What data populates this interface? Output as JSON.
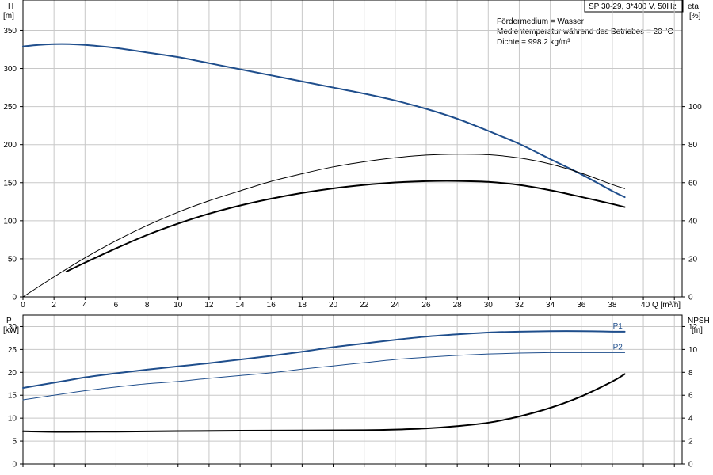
{
  "header": {
    "model": "SP 30-29, 3*400 V, 50Hz",
    "info_lines": [
      "Fördermedium = Wasser",
      "Medientemperatur während des Betriebes = 20 °C",
      "Dichte = 998.2 kg/m³"
    ]
  },
  "chart_data": [
    {
      "type": "line",
      "xlabel": "Q [m³/h]",
      "x_ticks": [
        0,
        2,
        4,
        6,
        8,
        10,
        12,
        14,
        16,
        18,
        20,
        22,
        24,
        26,
        28,
        30,
        32,
        34,
        36,
        38,
        40
      ],
      "x_tick_label_overrides": {
        "40": "40 Q [m³/h]"
      },
      "xlim": [
        0,
        42.5
      ],
      "y_left": {
        "label": "H",
        "unit": "[m]",
        "ylim": [
          0,
          390
        ],
        "ticks": [
          0,
          50,
          100,
          150,
          200,
          250,
          300,
          350
        ]
      },
      "y_right": {
        "label": "eta",
        "unit": "[%]",
        "ylim": [
          0,
          156
        ],
        "ticks": [
          0,
          20,
          40,
          60,
          80,
          100
        ]
      },
      "grid": true,
      "series": [
        {
          "axis": "left",
          "color": "#1f4e8c",
          "style": "head",
          "x": [
            0,
            1,
            2,
            3,
            4,
            6,
            8,
            10,
            12,
            14,
            16,
            18,
            20,
            22,
            24,
            26,
            28,
            30,
            32,
            34,
            36,
            38,
            38.8
          ],
          "y": [
            329,
            331,
            332,
            332,
            331,
            327,
            321,
            315,
            307,
            299,
            291,
            283,
            275,
            267,
            258,
            247,
            234,
            218,
            201,
            181,
            161,
            139,
            131
          ]
        },
        {
          "axis": "right",
          "color": "#000000",
          "style": "thick",
          "x": [
            2.8,
            4,
            6,
            8,
            10,
            12,
            14,
            16,
            18,
            20,
            22,
            24,
            26,
            28,
            30,
            32,
            34,
            36,
            38,
            38.8
          ],
          "y": [
            13.3,
            18,
            25.5,
            32.5,
            38.5,
            43.7,
            48,
            51.6,
            54.6,
            57,
            58.8,
            60.1,
            60.8,
            60.9,
            60.4,
            58.8,
            56,
            52.5,
            48.8,
            47.2
          ]
        },
        {
          "axis": "right",
          "color": "#000000",
          "style": "thin",
          "x": [
            0,
            2,
            4,
            6,
            8,
            10,
            12,
            14,
            16,
            18,
            20,
            22,
            24,
            26,
            28,
            30,
            32,
            34,
            36,
            38,
            38.8
          ],
          "y": [
            0,
            10.5,
            20.5,
            29.5,
            37.5,
            44.5,
            50.5,
            55.7,
            60.7,
            64.7,
            68.3,
            71,
            73.1,
            74.5,
            75,
            74.7,
            73,
            69.8,
            65,
            59,
            56.9
          ]
        }
      ]
    },
    {
      "type": "line",
      "xlim": [
        0,
        42.5
      ],
      "y_left": {
        "label": "P",
        "unit": "[kW]",
        "ylim": [
          0,
          32.5
        ],
        "ticks": [
          0,
          5,
          10,
          15,
          20,
          25,
          30
        ]
      },
      "y_right": {
        "label": "NPSH",
        "unit": "[m]",
        "ylim": [
          0,
          13
        ],
        "ticks": [
          0,
          2,
          4,
          6,
          8,
          10,
          12
        ]
      },
      "grid": true,
      "series": [
        {
          "name": "P1",
          "axis": "left",
          "color": "#1f4e8c",
          "style": "thick",
          "x": [
            0,
            2.8,
            4,
            6,
            8,
            10,
            12,
            14,
            16,
            18,
            20,
            22,
            24,
            26,
            28,
            30,
            32,
            34,
            36,
            38,
            38.8
          ],
          "y": [
            16.6,
            18.2,
            18.9,
            19.8,
            20.6,
            21.3,
            22,
            22.8,
            23.6,
            24.5,
            25.5,
            26.3,
            27.1,
            27.8,
            28.3,
            28.7,
            28.9,
            29,
            29,
            28.9,
            28.9
          ]
        },
        {
          "name": "P2",
          "axis": "left",
          "color": "#1f4e8c",
          "style": "thin",
          "x": [
            0,
            2.8,
            4,
            6,
            8,
            10,
            12,
            14,
            16,
            18,
            20,
            22,
            24,
            26,
            28,
            30,
            32,
            34,
            36,
            38,
            38.8
          ],
          "y": [
            14,
            15.4,
            16,
            16.8,
            17.5,
            18,
            18.7,
            19.3,
            19.9,
            20.7,
            21.4,
            22.1,
            22.8,
            23.3,
            23.7,
            24,
            24.2,
            24.3,
            24.3,
            24.3,
            24.3
          ]
        },
        {
          "axis": "right",
          "color": "#000000",
          "style": "thick",
          "x": [
            0,
            2.8,
            6,
            10,
            14,
            18,
            22,
            24,
            26,
            28,
            30,
            32,
            34,
            36,
            38,
            38.8
          ],
          "y": [
            2.85,
            2.8,
            2.82,
            2.87,
            2.9,
            2.92,
            2.95,
            3,
            3.1,
            3.3,
            3.6,
            4.15,
            4.9,
            5.9,
            7.2,
            7.85
          ]
        }
      ]
    }
  ]
}
